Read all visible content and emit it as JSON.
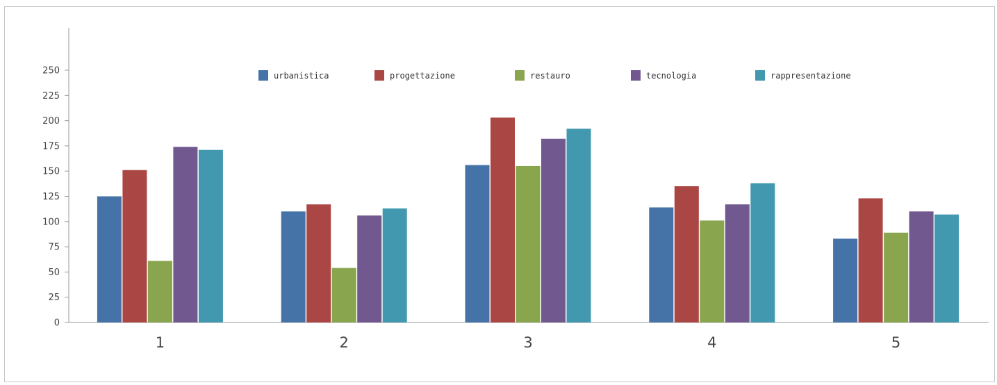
{
  "chart_data": {
    "type": "bar",
    "categories": [
      "1",
      "2",
      "3",
      "4",
      "5"
    ],
    "series": [
      {
        "name": "urbanistica",
        "color": "#4572a7",
        "values": [
          125,
          110,
          156,
          114,
          83
        ]
      },
      {
        "name": "progettazione",
        "color": "#aa4643",
        "values": [
          151,
          117,
          203,
          135,
          123
        ]
      },
      {
        "name": "restauro",
        "color": "#89a54e",
        "values": [
          61,
          54,
          155,
          101,
          89
        ]
      },
      {
        "name": "tecnologia",
        "color": "#71588f",
        "values": [
          174,
          106,
          182,
          117,
          110
        ]
      },
      {
        "name": "rappresentazione",
        "color": "#4198af",
        "values": [
          171,
          113,
          192,
          138,
          107
        ]
      }
    ],
    "yticks": [
      "0",
      "25",
      "50",
      "75",
      "100",
      "125",
      "150",
      "175",
      "200",
      "225",
      "250"
    ],
    "ylim": [
      0,
      250
    ],
    "title": "",
    "xlabel": "",
    "ylabel": "",
    "legend_position": "top-center",
    "grid": false
  }
}
